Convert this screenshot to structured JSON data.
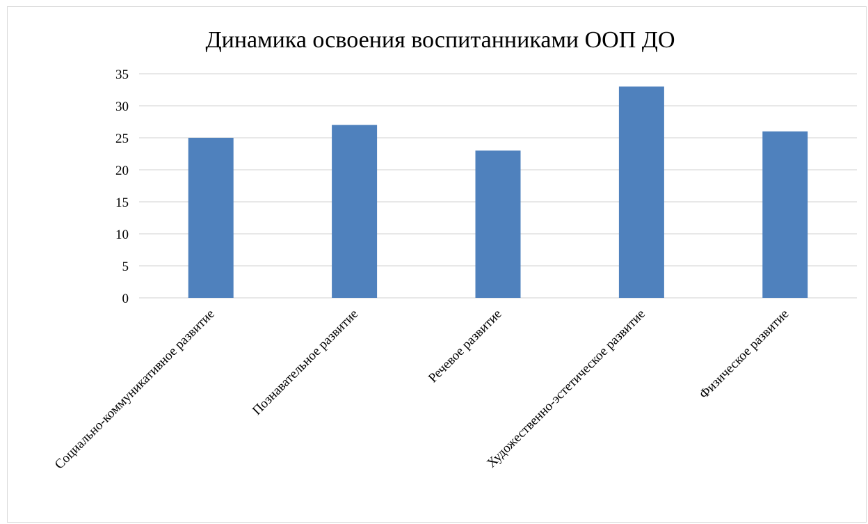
{
  "chart_data": {
    "type": "bar",
    "title": "Динамика освоения воспитанниками ООП ДО",
    "xlabel": "",
    "ylabel": "",
    "categories": [
      "Социально-коммуникативное развитие",
      "Познавательное развитие",
      "Речевое развитие",
      "Художественно-эстетическое развитие",
      "Физическое развитие"
    ],
    "values": [
      25,
      27,
      23,
      33,
      26
    ],
    "ylim": [
      0,
      35
    ],
    "yticks": [
      "0",
      "5",
      "10",
      "15",
      "20",
      "25",
      "30",
      "35"
    ],
    "grid": true,
    "legend": "none",
    "bar_color": "#4f81bd",
    "grid_color": "#d9d9d9"
  }
}
